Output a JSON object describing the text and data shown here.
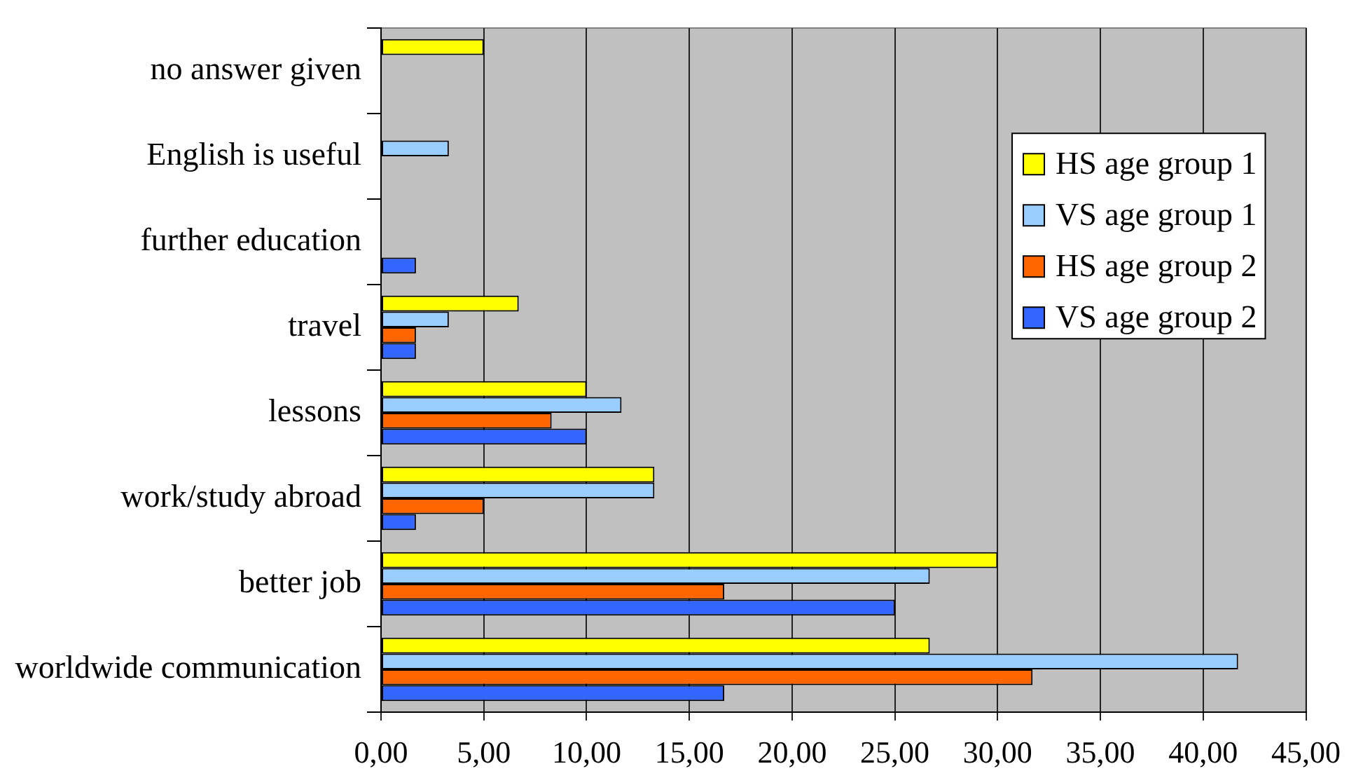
{
  "chart_data": {
    "type": "bar",
    "orientation": "horizontal",
    "categories": [
      "no answer given",
      "English is useful",
      "further education",
      "travel",
      "lessons",
      "work/study abroad",
      "better job",
      "worldwide communication"
    ],
    "series": [
      {
        "name": "HS age group 1",
        "color": "#ffff00",
        "values": [
          5,
          0,
          0,
          6.7,
          10,
          13.3,
          30,
          26.7
        ]
      },
      {
        "name": "VS age group 1",
        "color": "#99ccff",
        "values": [
          0,
          3.3,
          0,
          3.3,
          11.7,
          13.3,
          26.7,
          41.7
        ]
      },
      {
        "name": "HS age group 2",
        "color": "#ff6600",
        "values": [
          0,
          0,
          0,
          1.7,
          8.3,
          5,
          16.7,
          31.7
        ]
      },
      {
        "name": "VS age group 2",
        "color": "#3366ff",
        "values": [
          0,
          0,
          1.7,
          1.7,
          10,
          1.7,
          25,
          16.7
        ]
      }
    ],
    "xlim": [
      0,
      45
    ],
    "xticks": [
      {
        "value": 0,
        "label": "0,00"
      },
      {
        "value": 5,
        "label": "5,00"
      },
      {
        "value": 10,
        "label": "10,00"
      },
      {
        "value": 15,
        "label": "15,00"
      },
      {
        "value": 20,
        "label": "20,00"
      },
      {
        "value": 25,
        "label": "25,00"
      },
      {
        "value": 30,
        "label": "30,00"
      },
      {
        "value": 35,
        "label": "35,00"
      },
      {
        "value": 40,
        "label": "40,00"
      },
      {
        "value": 45,
        "label": "45,00"
      }
    ],
    "grid": "x",
    "legend": "right"
  }
}
